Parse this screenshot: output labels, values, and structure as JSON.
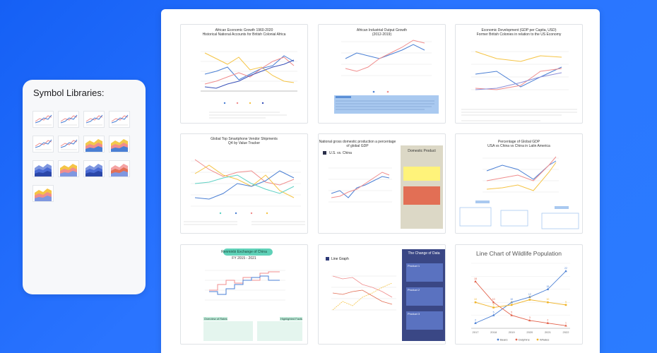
{
  "sidebar": {
    "title": "Symbol Libraries:",
    "thumbnails": [
      {
        "icon": "line-chart-thumb-icon",
        "style": "line"
      },
      {
        "icon": "line-chart-thumb-icon",
        "style": "line"
      },
      {
        "icon": "line-chart-thumb-icon",
        "style": "line"
      },
      {
        "icon": "line-chart-thumb-icon",
        "style": "line"
      },
      {
        "icon": "line-chart-thumb-icon",
        "style": "line"
      },
      {
        "icon": "line-chart-thumb-icon",
        "style": "line"
      },
      {
        "icon": "area-chart-thumb-icon",
        "style": "area"
      },
      {
        "icon": "area-chart-thumb-icon",
        "style": "area"
      },
      {
        "icon": "area-chart-thumb-icon",
        "style": "area-blue"
      },
      {
        "icon": "area-chart-thumb-icon",
        "style": "area-orange"
      },
      {
        "icon": "area-chart-thumb-icon",
        "style": "area-blue"
      },
      {
        "icon": "area-chart-thumb-icon",
        "style": "area-red"
      },
      {
        "icon": "area-chart-thumb-icon",
        "style": "area-orange"
      }
    ]
  },
  "templates": [
    {
      "title": "African Economic Growth 1960-2020",
      "subtitle": "Historical National Accounts for British Colonial Africa"
    },
    {
      "title": "African Industrial Output Growth",
      "subtitle": "(2012-2019)"
    },
    {
      "title": "Economic Development (GDP per Capita, USD)",
      "subtitle": "Former British Colonies in relation to the US Economy"
    },
    {
      "title": "Global Top Smartphone Vendor Shipments",
      "subtitle": "Q4 by Value Tracker"
    },
    {
      "title": "National gross domestic production a percentage",
      "subtitle": "of global GDP",
      "legend": "U.S. vs. China",
      "side_title": "Domestic Product"
    },
    {
      "title": "Percentage of Global GDP",
      "subtitle": "USA vs China vs China in Latin America"
    },
    {
      "title": "Renminbi Exchange of China",
      "subtitle": "FY 2015 - 2021",
      "note_left": "Overview of Rates",
      "note_right": "Highlighted Facts"
    },
    {
      "title": "Line Graph",
      "side_title": "The Change of Data",
      "boxes": [
        "Product 1",
        "Product 2",
        "Product 3"
      ]
    },
    {
      "title": "Line Chart of Wildlife Population",
      "legend": [
        "Bears",
        "Dolphins",
        "Whales"
      ],
      "years": [
        "2017",
        "2018",
        "2019",
        "2020",
        "2021",
        "2022"
      ]
    }
  ],
  "chart_data": {
    "type": "line",
    "title": "Line Chart of Wildlife Population",
    "categories": [
      "2017",
      "2018",
      "2019",
      "2020",
      "2021",
      "2022"
    ],
    "series": [
      {
        "name": "Bears",
        "values": [
          2,
          5,
          10,
          12,
          15,
          22
        ]
      },
      {
        "name": "Dolphins",
        "values": [
          18,
          10,
          5,
          3,
          2,
          1
        ]
      },
      {
        "name": "Whales",
        "values": [
          10,
          8,
          9,
          11,
          10,
          9
        ]
      }
    ],
    "ylim": [
      0,
      25
    ],
    "colors": [
      "#4a7fd4",
      "#e2614a",
      "#f0b429"
    ]
  }
}
